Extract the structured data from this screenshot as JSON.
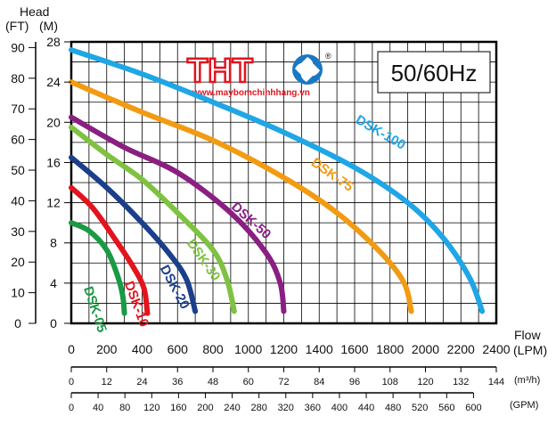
{
  "chart_data": {
    "type": "line",
    "title": "",
    "frequency_label": "50/60Hz",
    "head_label": "Head",
    "ft_unit": "(FT)",
    "m_unit": "(M)",
    "flow_label": "Flow",
    "lpm_unit": "(LPM)",
    "m3h_unit": "(m³/h)",
    "gpm_unit": "(GPM)",
    "ylim_m": [
      0,
      28
    ],
    "xlim_lpm": [
      0,
      2400
    ],
    "grid": true,
    "y_m_ticks": [
      "0",
      "4",
      "8",
      "12",
      "16",
      "20",
      "24",
      "28"
    ],
    "y_ft_ticks": [
      "0",
      "10",
      "20",
      "30",
      "40",
      "50",
      "60",
      "70",
      "80",
      "90"
    ],
    "x_lpm_ticks": [
      "0",
      "200",
      "400",
      "600",
      "800",
      "1000",
      "1200",
      "1400",
      "1600",
      "1800",
      "2000",
      "2200",
      "2400"
    ],
    "x_m3h_ticks": [
      "0",
      "12",
      "24",
      "36",
      "48",
      "60",
      "72",
      "84",
      "96",
      "108",
      "120",
      "132",
      "144"
    ],
    "x_gpm_ticks": [
      "0",
      "40",
      "80",
      "120",
      "160",
      "200",
      "240",
      "280",
      "320",
      "360",
      "400",
      "440",
      "480",
      "520",
      "560",
      "600"
    ],
    "series": [
      {
        "name": "DSK-05",
        "color": "#1a9a45",
        "points": [
          [
            0,
            10
          ],
          [
            100,
            9.2
          ],
          [
            200,
            7.3
          ],
          [
            260,
            4.8
          ],
          [
            290,
            2.8
          ],
          [
            300,
            1.0
          ]
        ]
      },
      {
        "name": "DSK-10",
        "color": "#e3141d",
        "points": [
          [
            0,
            13.5
          ],
          [
            120,
            11.5
          ],
          [
            250,
            8.3
          ],
          [
            350,
            5.6
          ],
          [
            410,
            3.5
          ],
          [
            430,
            1.0
          ]
        ]
      },
      {
        "name": "DSK-20",
        "color": "#1b3f8b",
        "points": [
          [
            0,
            16.5
          ],
          [
            200,
            13.5
          ],
          [
            400,
            10.0
          ],
          [
            550,
            7.0
          ],
          [
            650,
            4.4
          ],
          [
            700,
            1.2
          ]
        ]
      },
      {
        "name": "DSK-30",
        "color": "#7fc241",
        "points": [
          [
            0,
            19.5
          ],
          [
            200,
            16.8
          ],
          [
            400,
            14.3
          ],
          [
            600,
            11.0
          ],
          [
            800,
            7.3
          ],
          [
            880,
            4.3
          ],
          [
            920,
            1.2
          ]
        ]
      },
      {
        "name": "DSK-50",
        "color": "#8a1f82",
        "points": [
          [
            0,
            20.5
          ],
          [
            300,
            17.5
          ],
          [
            600,
            15.0
          ],
          [
            900,
            11.0
          ],
          [
            1100,
            7.0
          ],
          [
            1180,
            4.0
          ],
          [
            1200,
            1.2
          ]
        ]
      },
      {
        "name": "DSK-75",
        "color": "#f29b12",
        "points": [
          [
            0,
            24.0
          ],
          [
            400,
            21.0
          ],
          [
            800,
            18.2
          ],
          [
            1200,
            14.5
          ],
          [
            1500,
            11.0
          ],
          [
            1750,
            7.0
          ],
          [
            1880,
            4.0
          ],
          [
            1920,
            1.2
          ]
        ]
      },
      {
        "name": "DSK-100",
        "color": "#1fa6e6",
        "points": [
          [
            0,
            27.2
          ],
          [
            400,
            24.8
          ],
          [
            800,
            22.0
          ],
          [
            1200,
            19.0
          ],
          [
            1600,
            15.5
          ],
          [
            1900,
            12.0
          ],
          [
            2100,
            8.5
          ],
          [
            2250,
            4.5
          ],
          [
            2320,
            1.2
          ]
        ]
      }
    ]
  },
  "logo": {
    "text": "THT",
    "url": "www.maybomchinhhang.vn",
    "registered": "®"
  }
}
